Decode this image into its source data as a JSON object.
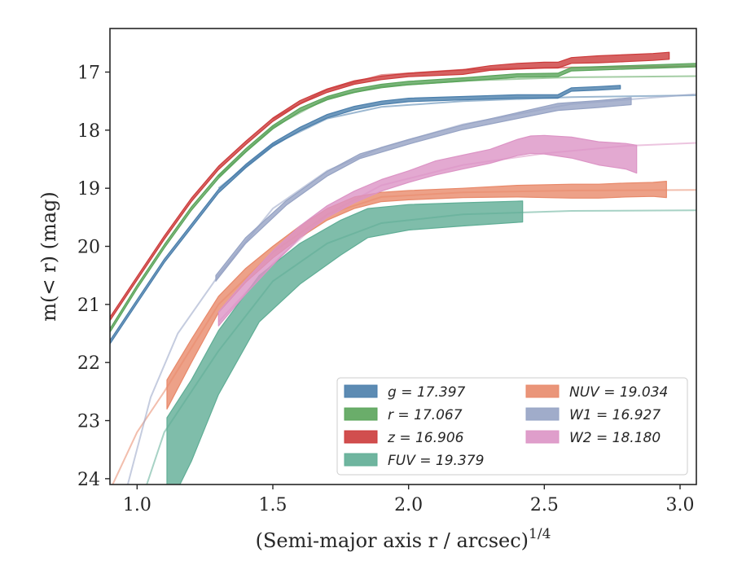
{
  "chart_data": {
    "type": "line",
    "title": "",
    "xlabel": "(Semi-major axis r / arcsec)",
    "xlabel_superscript": "1/4",
    "ylabel": "m(< r) (mag)",
    "xlim": [
      0.9,
      3.06
    ],
    "ylim": [
      24.1,
      16.25
    ],
    "y_inverted": true,
    "grid": false,
    "legend_placement": "lower-right",
    "xticks": [
      "1.0",
      "1.5",
      "2.0",
      "2.5",
      "3.0"
    ],
    "yticks": [
      "17",
      "18",
      "19",
      "20",
      "21",
      "22",
      "23",
      "24"
    ],
    "series": [
      {
        "name": "g = 17.397",
        "band": "g",
        "total_mag": "17.397",
        "color": "#4a7eab",
        "x": [
          0.9,
          1.0,
          1.1,
          1.2,
          1.3,
          1.4,
          1.5,
          1.6,
          1.7,
          1.8,
          1.9,
          2.0,
          2.2,
          2.4,
          2.55,
          2.6,
          2.7,
          2.78
        ],
        "y": [
          21.65,
          20.95,
          20.25,
          19.65,
          19.05,
          18.62,
          18.25,
          17.98,
          17.76,
          17.62,
          17.53,
          17.48,
          17.45,
          17.42,
          17.42,
          17.3,
          17.28,
          17.26
        ],
        "halfwidth": [
          0.03,
          0.03,
          0.03,
          0.03,
          0.03,
          0.03,
          0.03,
          0.03,
          0.03,
          0.03,
          0.03,
          0.03,
          0.03,
          0.03,
          0.03,
          0.03,
          0.03,
          0.03
        ],
        "model_x": [
          1.3,
          1.5,
          1.7,
          1.9,
          2.2,
          2.6,
          3.06
        ],
        "model_y": [
          19.0,
          18.25,
          17.8,
          17.6,
          17.5,
          17.43,
          17.4
        ]
      },
      {
        "name": "r = 17.067",
        "band": "r",
        "total_mag": "17.067",
        "color": "#5aa45a",
        "x": [
          0.9,
          1.0,
          1.1,
          1.2,
          1.3,
          1.4,
          1.5,
          1.6,
          1.7,
          1.8,
          1.9,
          2.0,
          2.2,
          2.4,
          2.55,
          2.6,
          2.8,
          3.06
        ],
        "y": [
          21.45,
          20.7,
          20.0,
          19.35,
          18.8,
          18.35,
          17.95,
          17.65,
          17.45,
          17.32,
          17.24,
          17.19,
          17.13,
          17.06,
          17.05,
          16.95,
          16.92,
          16.88
        ],
        "halfwidth": [
          0.03,
          0.03,
          0.03,
          0.03,
          0.03,
          0.03,
          0.03,
          0.03,
          0.03,
          0.03,
          0.03,
          0.03,
          0.03,
          0.03,
          0.03,
          0.03,
          0.03,
          0.03
        ],
        "model_x": [
          1.3,
          1.5,
          1.7,
          1.9,
          2.2,
          2.6,
          3.06
        ],
        "model_y": [
          18.8,
          17.95,
          17.45,
          17.25,
          17.15,
          17.09,
          17.07
        ]
      },
      {
        "name": "z = 16.906",
        "band": "z",
        "total_mag": "16.906",
        "color": "#cc3b3b",
        "x": [
          0.9,
          1.0,
          1.1,
          1.2,
          1.3,
          1.4,
          1.5,
          1.6,
          1.7,
          1.8,
          1.9,
          2.0,
          2.2,
          2.3,
          2.4,
          2.5,
          2.55,
          2.6,
          2.7,
          2.8,
          2.9,
          2.96
        ],
        "y": [
          21.25,
          20.55,
          19.85,
          19.2,
          18.65,
          18.22,
          17.82,
          17.52,
          17.32,
          17.18,
          17.1,
          17.05,
          17.0,
          16.93,
          16.9,
          16.88,
          16.88,
          16.8,
          16.78,
          16.76,
          16.74,
          16.72
        ],
        "halfwidth": [
          0.03,
          0.03,
          0.03,
          0.03,
          0.03,
          0.03,
          0.03,
          0.03,
          0.03,
          0.03,
          0.03,
          0.03,
          0.04,
          0.04,
          0.05,
          0.05,
          0.05,
          0.05,
          0.06,
          0.06,
          0.06,
          0.06
        ],
        "model_x": [
          1.5,
          1.7,
          1.9,
          2.2,
          2.6,
          3.06
        ],
        "model_y": [
          17.8,
          17.3,
          17.05,
          16.96,
          16.92,
          16.9
        ]
      },
      {
        "name": "FUV = 19.379",
        "band": "FUV",
        "total_mag": "19.379",
        "color": "#5fad95",
        "x": [
          1.11,
          1.2,
          1.3,
          1.45,
          1.6,
          1.75,
          1.85,
          2.0,
          2.2,
          2.42
        ],
        "y": [
          23.75,
          23.0,
          22.0,
          20.9,
          20.3,
          19.85,
          19.6,
          19.5,
          19.45,
          19.4
        ],
        "halfwidth": [
          0.8,
          0.7,
          0.55,
          0.4,
          0.35,
          0.3,
          0.25,
          0.22,
          0.2,
          0.18
        ],
        "model_x": [
          0.9,
          1.0,
          1.1,
          1.3,
          1.5,
          1.7,
          1.9,
          2.2,
          2.6,
          3.06
        ],
        "model_y": [
          25.5,
          24.6,
          23.2,
          21.8,
          20.6,
          19.95,
          19.6,
          19.45,
          19.39,
          19.38
        ]
      },
      {
        "name": "NUV = 19.034",
        "band": "NUV",
        "total_mag": "19.034",
        "color": "#e8896a",
        "x": [
          1.11,
          1.2,
          1.3,
          1.4,
          1.5,
          1.6,
          1.7,
          1.8,
          1.9,
          2.0,
          2.2,
          2.4,
          2.6,
          2.7,
          2.8,
          2.9,
          2.95
        ],
        "y": [
          22.55,
          21.8,
          21.0,
          20.5,
          20.1,
          19.75,
          19.45,
          19.25,
          19.15,
          19.12,
          19.08,
          19.05,
          19.05,
          19.05,
          19.03,
          19.02,
          19.02
        ],
        "halfwidth": [
          0.25,
          0.2,
          0.14,
          0.12,
          0.1,
          0.1,
          0.1,
          0.1,
          0.08,
          0.08,
          0.08,
          0.1,
          0.12,
          0.12,
          0.12,
          0.12,
          0.14
        ],
        "model_x": [
          0.9,
          1.0,
          1.1,
          1.3,
          1.5,
          1.7,
          1.9,
          2.2,
          2.6,
          3.06
        ],
        "model_y": [
          24.2,
          23.2,
          22.5,
          21.0,
          20.1,
          19.45,
          19.15,
          19.07,
          19.04,
          19.03
        ]
      },
      {
        "name": "W1 = 16.927",
        "band": "W1",
        "total_mag": "16.927",
        "color": "#96a3c4",
        "x": [
          1.29,
          1.4,
          1.55,
          1.7,
          1.82,
          2.0,
          2.2,
          2.4,
          2.55,
          2.7,
          2.82
        ],
        "y": [
          20.55,
          19.9,
          19.25,
          18.75,
          18.45,
          18.2,
          17.95,
          17.75,
          17.6,
          17.55,
          17.5
        ],
        "halfwidth": [
          0.05,
          0.05,
          0.04,
          0.04,
          0.04,
          0.04,
          0.04,
          0.05,
          0.06,
          0.06,
          0.06
        ],
        "model_x": [
          0.96,
          1.05,
          1.15,
          1.3,
          1.5,
          1.7,
          1.9,
          2.2,
          2.6,
          3.06
        ],
        "model_y": [
          24.2,
          22.6,
          21.5,
          20.5,
          19.35,
          18.7,
          18.3,
          17.9,
          17.55,
          17.38
        ]
      },
      {
        "name": "W2 = 18.180",
        "band": "W2",
        "total_mag": "18.180",
        "color": "#dc94c5",
        "x": [
          1.3,
          1.4,
          1.5,
          1.6,
          1.7,
          1.8,
          1.9,
          2.0,
          2.1,
          2.2,
          2.3,
          2.4,
          2.45,
          2.5,
          2.6,
          2.7,
          2.8,
          2.84
        ],
        "y": [
          21.25,
          20.7,
          20.2,
          19.75,
          19.4,
          19.15,
          18.95,
          18.8,
          18.65,
          18.55,
          18.45,
          18.3,
          18.25,
          18.25,
          18.3,
          18.4,
          18.45,
          18.5
        ],
        "halfwidth": [
          0.12,
          0.12,
          0.12,
          0.1,
          0.1,
          0.1,
          0.1,
          0.1,
          0.12,
          0.12,
          0.12,
          0.14,
          0.15,
          0.16,
          0.18,
          0.2,
          0.22,
          0.24
        ],
        "model_x": [
          1.3,
          1.5,
          1.7,
          1.9,
          2.2,
          2.5,
          2.8,
          3.06
        ],
        "model_y": [
          21.3,
          20.3,
          19.45,
          18.95,
          18.6,
          18.4,
          18.27,
          18.22
        ]
      }
    ]
  }
}
